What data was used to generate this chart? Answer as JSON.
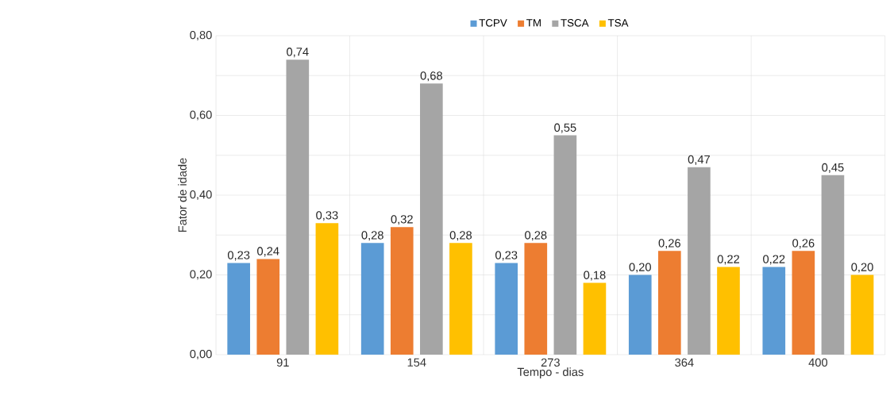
{
  "chart_data": {
    "type": "bar",
    "xlabel": "Tempo - dias",
    "ylabel": "Fator de idade",
    "categories": [
      "91",
      "154",
      "273",
      "364",
      "400"
    ],
    "series": [
      {
        "name": "TCPV",
        "color": "#5b9bd5",
        "values": [
          0.23,
          0.28,
          0.23,
          0.2,
          0.22
        ],
        "value_labels": [
          "0,23",
          "0,28",
          "0,23",
          "0,20",
          "0,22"
        ]
      },
      {
        "name": "TM",
        "color": "#ed7d31",
        "values": [
          0.24,
          0.32,
          0.28,
          0.26,
          0.26
        ],
        "value_labels": [
          "0,24",
          "0,32",
          "0,28",
          "0,26",
          "0,26"
        ]
      },
      {
        "name": "TSCA",
        "color": "#a5a5a5",
        "values": [
          0.74,
          0.68,
          0.55,
          0.47,
          0.45
        ],
        "value_labels": [
          "0,74",
          "0,68",
          "0,55",
          "0,47",
          "0,45"
        ]
      },
      {
        "name": "TSA",
        "color": "#ffc000",
        "values": [
          0.33,
          0.28,
          0.18,
          0.22,
          0.2
        ],
        "value_labels": [
          "0,33",
          "0,28",
          "0,18",
          "0,22",
          "0,20"
        ]
      }
    ],
    "ylim": [
      0,
      0.8
    ],
    "yticks": [
      {
        "value": 0,
        "label": "0,00"
      },
      {
        "value": 0.1,
        "label": null
      },
      {
        "value": 0.2,
        "label": "0,20"
      },
      {
        "value": 0.3,
        "label": null
      },
      {
        "value": 0.4,
        "label": "0,40"
      },
      {
        "value": 0.5,
        "label": null
      },
      {
        "value": 0.6,
        "label": "0,60"
      },
      {
        "value": 0.7,
        "label": null
      },
      {
        "value": 0.8,
        "label": "0,80"
      }
    ],
    "grid": true,
    "legend": "top"
  }
}
